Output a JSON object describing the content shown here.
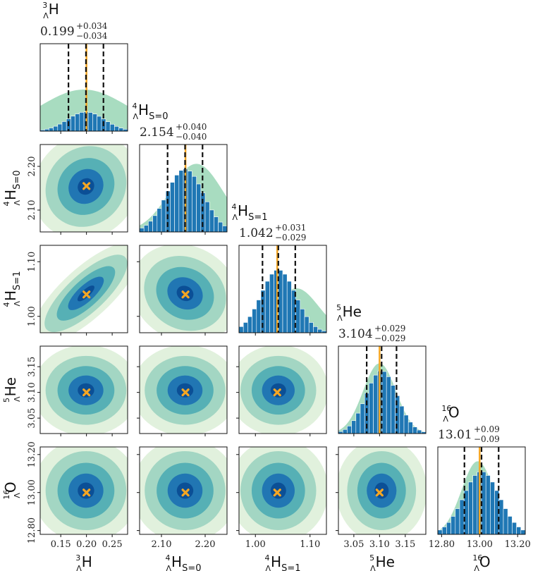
{
  "chart_data": {
    "type": "corner",
    "colors": {
      "hist": "#1f77b4",
      "truth": "#f5a623",
      "quantile": "#111111",
      "prior": "#a8dcc0",
      "contours": [
        "#e1f1dd",
        "#a3d6c3",
        "#56b0b5",
        "#2176b3",
        "#0b4f96"
      ]
    },
    "params": [
      {
        "name": "3LH",
        "label": {
          "pre": "3",
          "sub": "Λ",
          "main": "H",
          "post": ""
        },
        "title_value": "0.199",
        "err_up": "+0.034",
        "err_down": "−0.034",
        "mean": 0.199,
        "sigma": 0.034,
        "prior_mean": 0.195,
        "prior_sigma": 0.085,
        "prior_amp": 0.58,
        "quantiles": [
          0.165,
          0.199,
          0.233
        ],
        "truth": 0.2,
        "range": [
          0.11,
          0.28
        ],
        "ticks": [
          0.15,
          0.2,
          0.25
        ],
        "ticklabels": [
          "0.15",
          "0.20",
          "0.25"
        ]
      },
      {
        "name": "4LH_S0",
        "label": {
          "pre": "4",
          "sub": "Λ",
          "main": "H",
          "post": "S=0"
        },
        "title_value": "2.154",
        "err_up": "+0.040",
        "err_down": "−0.040",
        "mean": 2.154,
        "sigma": 0.04,
        "prior_mean": 2.18,
        "prior_sigma": 0.06,
        "prior_amp": 0.95,
        "quantiles": [
          2.114,
          2.154,
          2.194
        ],
        "truth": 2.155,
        "range": [
          2.05,
          2.25
        ],
        "ticks": [
          2.1,
          2.2
        ],
        "ticklabels": [
          "2.10",
          "2.20"
        ]
      },
      {
        "name": "4LH_S1",
        "label": {
          "pre": "4",
          "sub": "Λ",
          "main": "H",
          "post": "S=1"
        },
        "title_value": "1.042",
        "err_up": "+0.031",
        "err_down": "−0.029",
        "mean": 1.042,
        "sigma": 0.03,
        "prior_mean": 1.075,
        "prior_sigma": 0.04,
        "prior_amp": 0.62,
        "quantiles": [
          1.013,
          1.042,
          1.073
        ],
        "truth": 1.04,
        "range": [
          0.97,
          1.13
        ],
        "ticks": [
          1.0,
          1.1
        ],
        "ticklabels": [
          "1.00",
          "1.10"
        ]
      },
      {
        "name": "5LHe",
        "label": {
          "pre": "5",
          "sub": "Λ",
          "main": "He",
          "post": ""
        },
        "title_value": "3.104",
        "err_up": "+0.029",
        "err_down": "−0.029",
        "mean": 3.104,
        "sigma": 0.029,
        "prior_mean": 3.1,
        "prior_sigma": 0.032,
        "prior_amp": 0.98,
        "quantiles": [
          3.075,
          3.104,
          3.133
        ],
        "truth": 3.1,
        "range": [
          3.02,
          3.19
        ],
        "ticks": [
          3.05,
          3.1,
          3.15
        ],
        "ticklabels": [
          "3.05",
          "3.10",
          "3.15"
        ]
      },
      {
        "name": "16LO",
        "label": {
          "pre": "16",
          "sub": "Λ",
          "main": "O",
          "post": ""
        },
        "title_value": "13.01",
        "err_up": "+0.09",
        "err_down": "−0.09",
        "mean": 13.01,
        "sigma": 0.09,
        "prior_mean": 12.99,
        "prior_sigma": 0.085,
        "prior_amp": 1.02,
        "quantiles": [
          12.92,
          13.01,
          13.1
        ],
        "truth": 13.0,
        "range": [
          12.78,
          13.24
        ],
        "ticks": [
          12.8,
          13.0,
          13.2
        ],
        "ticklabels": [
          "12.80",
          "13.00",
          "13.20"
        ]
      }
    ],
    "correlations": {
      "1-0": 0.1,
      "2-0": 0.75,
      "2-1": -0.1
    },
    "truth_marker": "x"
  }
}
